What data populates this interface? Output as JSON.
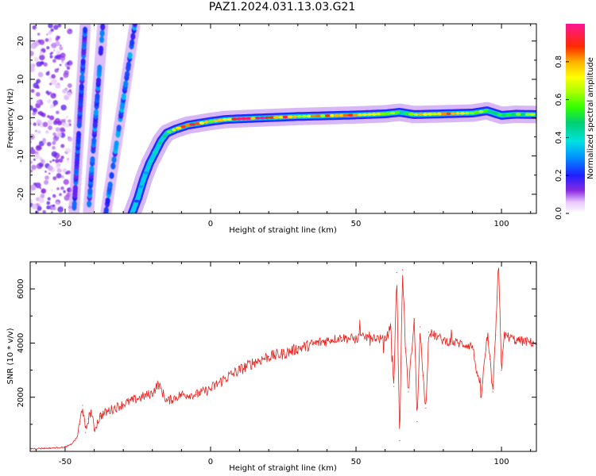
{
  "figure": {
    "title": "PAZ1.2024.031.13.03.G21"
  },
  "chart_data": [
    {
      "type": "heatmap",
      "title": "PAZ1.2024.031.13.03.G21",
      "xlabel": "Height of straight line (km)",
      "ylabel": "Frequency (Hz)",
      "xlim": [
        -62,
        112
      ],
      "ylim": [
        -25,
        24.5
      ],
      "xticks": [
        -50,
        0,
        50,
        100
      ],
      "yticks": [
        -20,
        -10,
        0,
        10,
        20
      ],
      "colorbar": {
        "label": "Normalized spectral amplitude",
        "range": [
          0,
          1
        ],
        "ticks": [
          0.0,
          0.2,
          0.4,
          0.6,
          0.8
        ],
        "tick_labels": [
          "0.0",
          "0.2",
          "0.4",
          "0.6",
          "0.8"
        ],
        "colormap": "gist_ncar_r"
      },
      "ridge_frequency": {
        "x": [
          -27,
          -25,
          -23,
          -21,
          -19,
          -17,
          -15,
          -12,
          -8,
          -4,
          0,
          5,
          10,
          20,
          30,
          40,
          50,
          60,
          65,
          70,
          80,
          90,
          95,
          100,
          105,
          112
        ],
        "y": [
          -25,
          -21,
          -16,
          -12,
          -9,
          -6,
          -4,
          -3,
          -2,
          -1.5,
          -1,
          -0.5,
          -0.3,
          0,
          0.3,
          0.5,
          0.7,
          1,
          1.4,
          0.8,
          1,
          1.2,
          1.8,
          0.6,
          0.9,
          0.8
        ],
        "amplitude": [
          0.3,
          0.3,
          0.32,
          0.35,
          0.4,
          0.45,
          0.55,
          0.7,
          0.9,
          0.85,
          0.75,
          0.8,
          0.95,
          0.9,
          0.85,
          0.8,
          0.82,
          0.7,
          0.55,
          0.78,
          0.8,
          0.75,
          0.5,
          0.62,
          0.6,
          0.6
        ]
      },
      "aliased_lines": [
        {
          "x": [
            -47,
            -43
          ],
          "y": [
            -25,
            24.5
          ],
          "amplitude": 0.25
        },
        {
          "x": [
            -42,
            -37
          ],
          "y": [
            -25,
            24.5
          ],
          "amplitude": 0.28
        },
        {
          "x": [
            -36,
            -26
          ],
          "y": [
            -25,
            24.5
          ],
          "amplitude": 0.3
        }
      ],
      "noise_region": {
        "x": [
          -62,
          -48
        ],
        "amplitude": 0.12
      }
    },
    {
      "type": "line",
      "xlabel": "Height of straight line (km)",
      "ylabel": "SNR (10 * v/v)",
      "xlim": [
        -62,
        112
      ],
      "ylim": [
        0,
        7000
      ],
      "xticks": [
        -50,
        0,
        50,
        100
      ],
      "yticks": [
        2000,
        4000,
        6000
      ],
      "series": [
        {
          "color": "#e8201c",
          "x": [
            -62,
            -55,
            -50,
            -48,
            -46,
            -45,
            -44,
            -43,
            -42,
            -41,
            -40,
            -38,
            -35,
            -30,
            -25,
            -20,
            -18,
            -15,
            -10,
            -5,
            0,
            5,
            10,
            15,
            20,
            25,
            30,
            35,
            40,
            45,
            50,
            55,
            60,
            62,
            63,
            64,
            65,
            66,
            67,
            68,
            70,
            71,
            72,
            73,
            74,
            75,
            80,
            85,
            90,
            93,
            95,
            96,
            97,
            98,
            99,
            100,
            101,
            105,
            112
          ],
          "y": [
            100,
            120,
            160,
            250,
            500,
            1000,
            1700,
            700,
            1200,
            1500,
            800,
            1300,
            1500,
            1750,
            1950,
            2150,
            2500,
            1850,
            2100,
            2100,
            2300,
            2700,
            3000,
            3300,
            3500,
            3600,
            3800,
            3950,
            4100,
            4200,
            4150,
            4250,
            4100,
            4600,
            2400,
            6600,
            400,
            6700,
            3800,
            2200,
            4900,
            1100,
            4600,
            2800,
            1600,
            4400,
            4100,
            4000,
            3900,
            2000,
            4200,
            3400,
            2200,
            4300,
            7000,
            3000,
            4300,
            4100,
            4000
          ]
        }
      ]
    }
  ]
}
